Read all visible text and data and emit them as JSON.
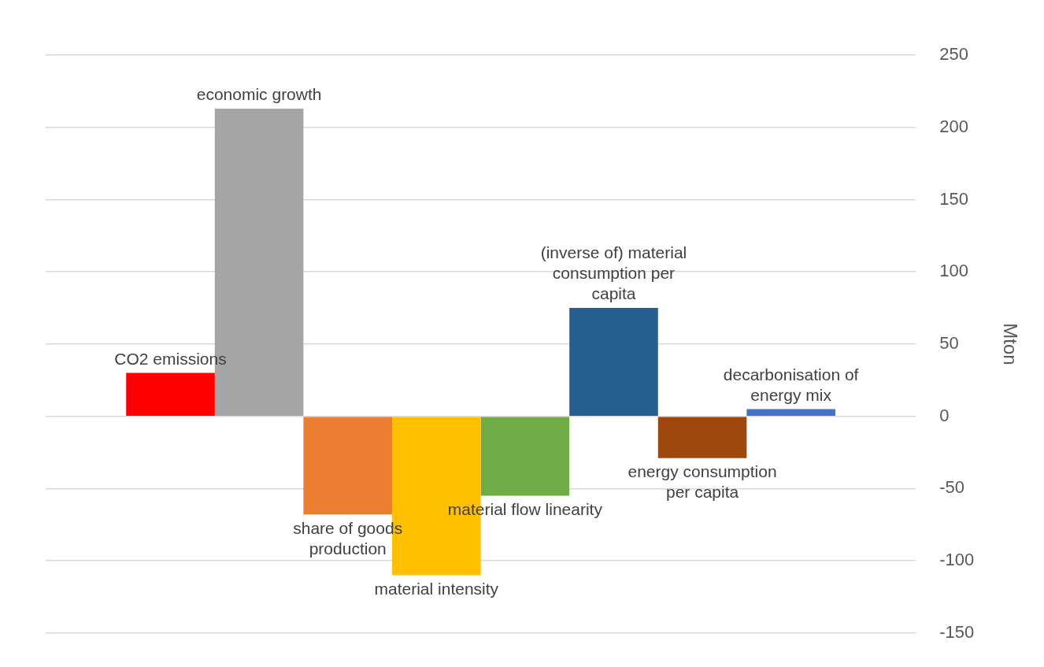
{
  "chart_data": {
    "type": "bar",
    "categories": [
      null
    ],
    "ylabel": "Mton",
    "ylim": [
      -150,
      250
    ],
    "yticks": [
      -150,
      -100,
      -50,
      0,
      50,
      100,
      150,
      200,
      250
    ],
    "grid": "y",
    "legend": false,
    "series": [
      {
        "name": "CO2 emissions",
        "color": "#ff0000",
        "values": [
          30
        ]
      },
      {
        "name": "economic growth",
        "color": "#a5a5a5",
        "values": [
          213
        ]
      },
      {
        "name": "share of goods production",
        "color": "#ed7d31",
        "values": [
          -68
        ]
      },
      {
        "name": "material intensity",
        "color": "#ffc000",
        "values": [
          -110
        ]
      },
      {
        "name": "material flow linearity",
        "color": "#70ad47",
        "values": [
          -55
        ]
      },
      {
        "name": "(inverse of) material consumption per capita",
        "color": "#255e91",
        "values": [
          75
        ]
      },
      {
        "name": "energy consumption per capita",
        "color": "#9e480e",
        "values": [
          -29
        ]
      },
      {
        "name": "decarbonisation of energy mix",
        "color": "#4472c4",
        "values": [
          5
        ]
      }
    ]
  }
}
